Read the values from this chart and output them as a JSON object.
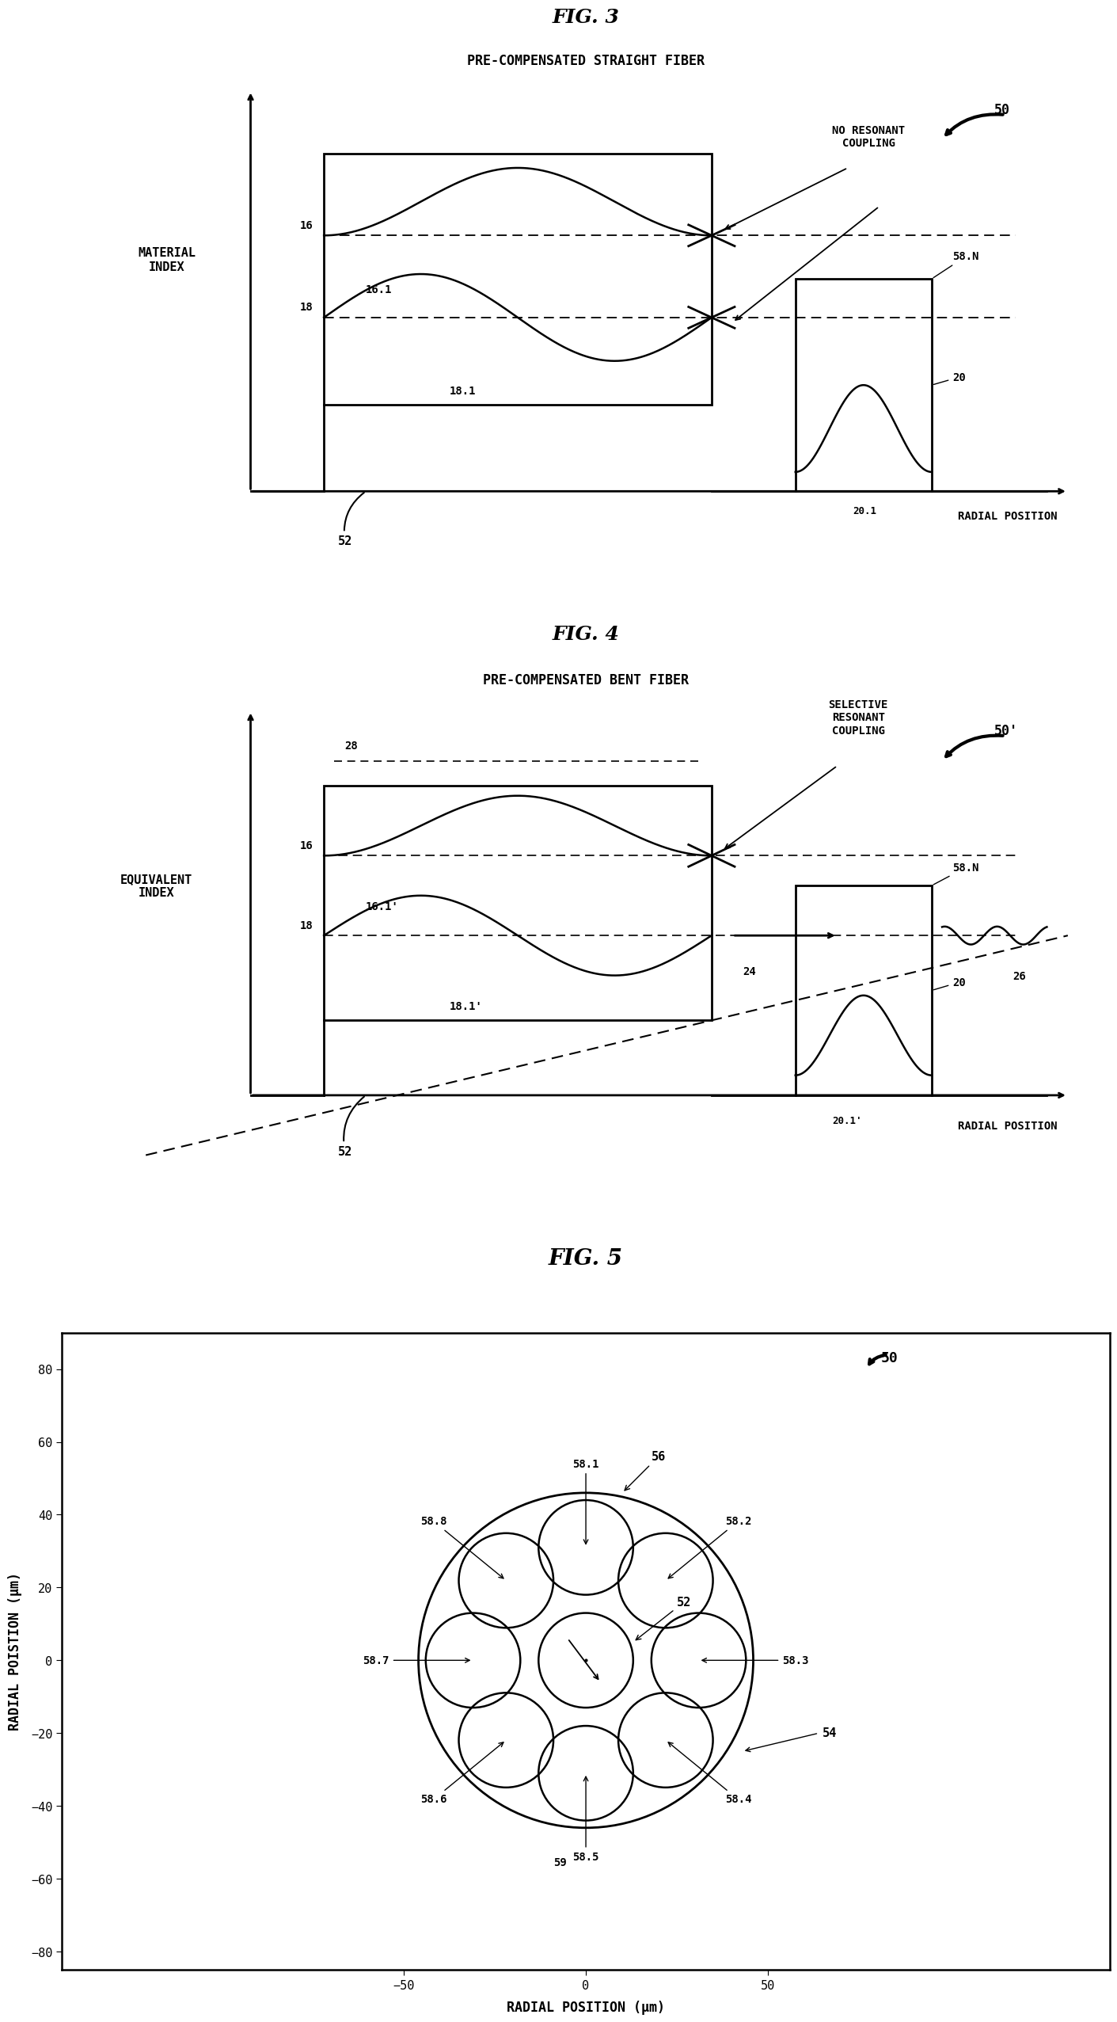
{
  "fig3_title": "FIG. 3",
  "fig3_subtitle": "PRE-COMPENSATED STRAIGHT FIBER",
  "fig3_ylabel": "MATERIAL\nINDEX",
  "fig3_xlabel": "RADIAL POSITION",
  "fig3_annotation_no_resonant": "NO RESONANT\nCOUPLING",
  "fig3_label_16": "16",
  "fig3_label_161": "16.1",
  "fig3_label_18": "18",
  "fig3_label_181": "18.1",
  "fig3_label_58N": "58.N",
  "fig3_label_20": "20",
  "fig3_label_201": "20.1",
  "fig3_label_52": "52",
  "fig3_ref50": "50",
  "fig4_title": "FIG. 4",
  "fig4_subtitle": "PRE-COMPENSATED BENT FIBER",
  "fig4_ylabel": "EQUIVALENT\nINDEX",
  "fig4_xlabel": "RADIAL POSITION",
  "fig4_annotation_selective": "SELECTIVE\nRESONANT\nCOUPLING",
  "fig4_label_16": "16",
  "fig4_label_161": "16.1'",
  "fig4_label_18": "18",
  "fig4_label_181": "18.1'",
  "fig4_label_58N": "58.N",
  "fig4_label_20": "20",
  "fig4_label_201": "20.1'",
  "fig4_label_24": "24",
  "fig4_label_26": "26",
  "fig4_label_28": "28",
  "fig4_label_52": "52",
  "fig4_ref50": "50'",
  "fig5_title": "FIG. 5",
  "fig5_xlabel": "RADIAL POSITION (μm)",
  "fig5_ylabel": "RADIAL POISTION (μm)",
  "fig5_xlim": [
    -75,
    75
  ],
  "fig5_ylim": [
    -85,
    90
  ],
  "fig5_xticks": [
    -50,
    0,
    50
  ],
  "fig5_yticks": [
    -80,
    -60,
    -40,
    -20,
    0,
    20,
    40,
    60,
    80
  ],
  "fig5_outer_circle_r": 46,
  "fig5_inner_circles_r": 13,
  "fig5_label_58_1": "58.1",
  "fig5_label_58_2": "58.2",
  "fig5_label_58_3": "58.3",
  "fig5_label_58_4": "58.4",
  "fig5_label_58_5": "58.5",
  "fig5_label_58_6": "58.6",
  "fig5_label_58_7": "58.7",
  "fig5_label_58_8": "58.8",
  "fig5_label_56": "56",
  "fig5_label_52": "52",
  "fig5_label_54": "54",
  "fig5_label_59": "59",
  "fig5_ref50": "50",
  "fig5_center_circle_r": 13,
  "bg_color": "#ffffff",
  "line_color": "#000000"
}
